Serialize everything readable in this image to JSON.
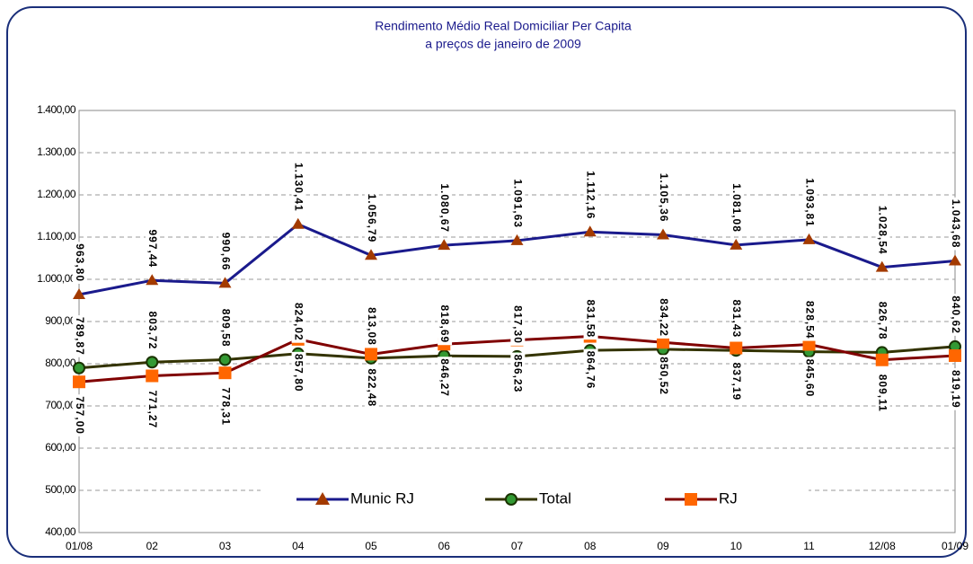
{
  "chart_data": {
    "type": "line",
    "title": "Rendimento Médio Real Domiciliar Per Capita",
    "subtitle": "a preços de janeiro de 2009",
    "categories": [
      "01/08",
      "02",
      "03",
      "04",
      "05",
      "06",
      "07",
      "08",
      "09",
      "10",
      "11",
      "12/08",
      "01/09"
    ],
    "series": [
      {
        "name": "Munic RJ",
        "color": "#1a1a8c",
        "marker": "triangle",
        "marker_color": "#a33a00",
        "values": [
          963.8,
          997.44,
          990.66,
          1130.41,
          1056.79,
          1080.67,
          1091.63,
          1112.16,
          1105.36,
          1081.08,
          1093.81,
          1028.54,
          1043.68
        ],
        "value_labels": [
          "963,80",
          "997,44",
          "990,66",
          "1.130,41",
          "1.056,79",
          "1.080,67",
          "1.091,63",
          "1.112,16",
          "1.105,36",
          "1.081,08",
          "1.093,81",
          "1.028,54",
          "1.043,68"
        ]
      },
      {
        "name": "Total",
        "color": "#333300",
        "marker": "circle",
        "marker_color": "#339933",
        "values": [
          789.87,
          803.72,
          809.58,
          824.02,
          813.08,
          818.69,
          817.3,
          831.58,
          834.22,
          831.43,
          828.54,
          826.78,
          840.62
        ],
        "value_labels": [
          "789,87",
          "803,72",
          "809,58",
          "824,02",
          "813,08",
          "818,69",
          "817,30",
          "831,58",
          "834,22",
          "831,43",
          "828,54",
          "826,78",
          "840,62"
        ]
      },
      {
        "name": "RJ",
        "color": "#800000",
        "marker": "square",
        "marker_color": "#ff6600",
        "values": [
          757.0,
          771.27,
          778.31,
          857.8,
          822.48,
          846.27,
          856.23,
          864.76,
          850.52,
          837.19,
          845.6,
          809.11,
          819.19
        ],
        "value_labels": [
          "757,00",
          "771,27",
          "778,31",
          "857,80",
          "822,48",
          "846,27",
          "856,23",
          "864,76",
          "850,52",
          "837,19",
          "845,60",
          "809,11",
          "819,19"
        ]
      }
    ],
    "ylim": [
      400,
      1400
    ],
    "yticks": [
      {
        "value": 400,
        "label": "400,00"
      },
      {
        "value": 500,
        "label": "500,00"
      },
      {
        "value": 600,
        "label": "600,00"
      },
      {
        "value": 700,
        "label": "700,00"
      },
      {
        "value": 800,
        "label": "800,00"
      },
      {
        "value": 900,
        "label": "900,00"
      },
      {
        "value": 1000,
        "label": "1.000,00"
      },
      {
        "value": 1100,
        "label": "1.100,00"
      },
      {
        "value": 1200,
        "label": "1.200,00"
      },
      {
        "value": 1300,
        "label": "1.300,00"
      },
      {
        "value": 1400,
        "label": "1.400,00"
      }
    ],
    "grid": true,
    "legend": "bottom"
  }
}
